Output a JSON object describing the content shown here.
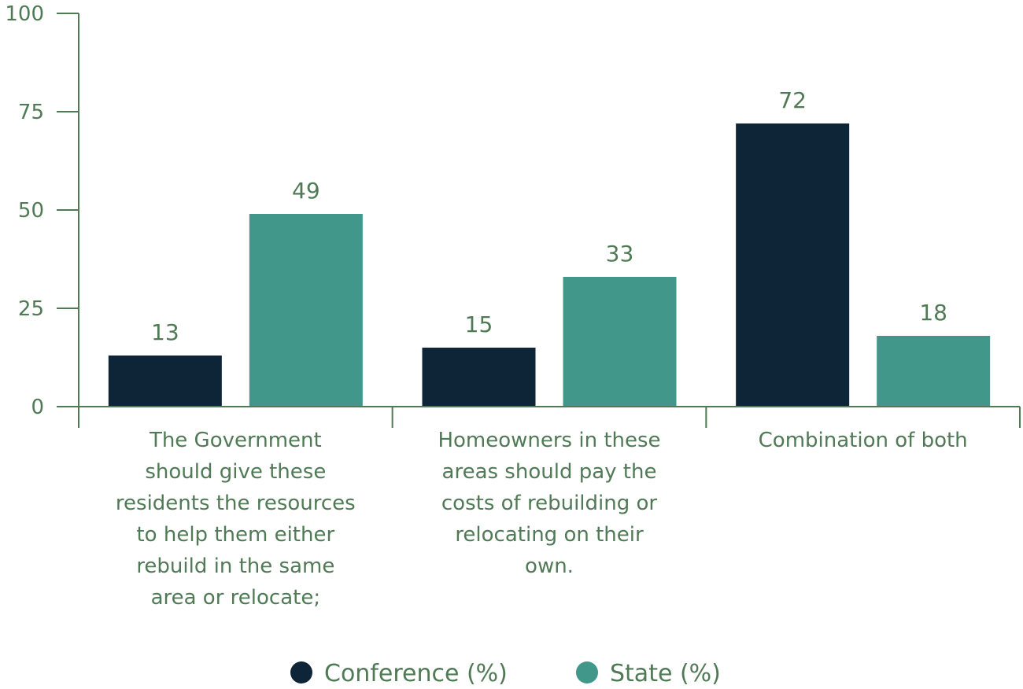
{
  "chart_data": {
    "type": "bar",
    "categories": [
      "The Government should give these residents the resources to help them either rebuild in the same area or relocate;",
      "Homeowners in these areas should pay the costs of rebuilding or relocating on their own.",
      "Combination of both"
    ],
    "category_lines": [
      [
        "The Government",
        "should give these",
        "residents the resources",
        "to help them either",
        "rebuild in the same",
        "area or relocate;"
      ],
      [
        "Homeowners in these",
        "areas should pay the",
        "costs of rebuilding or",
        "relocating on their",
        "own."
      ],
      [
        "Combination of both"
      ]
    ],
    "series": [
      {
        "name": "Conference (%)",
        "values": [
          13,
          15,
          72
        ],
        "color": "#0e2538"
      },
      {
        "name": "State (%)",
        "values": [
          49,
          33,
          18
        ],
        "color": "#41978a"
      }
    ],
    "y_ticks": [
      0,
      25,
      50,
      75,
      100
    ],
    "ylim": [
      0,
      100
    ],
    "title": "",
    "xlabel": "",
    "ylabel": "",
    "grid": false,
    "legend_position": "bottom-center",
    "axis_color": "#4f7a55",
    "text_color": "#4f7a55"
  }
}
